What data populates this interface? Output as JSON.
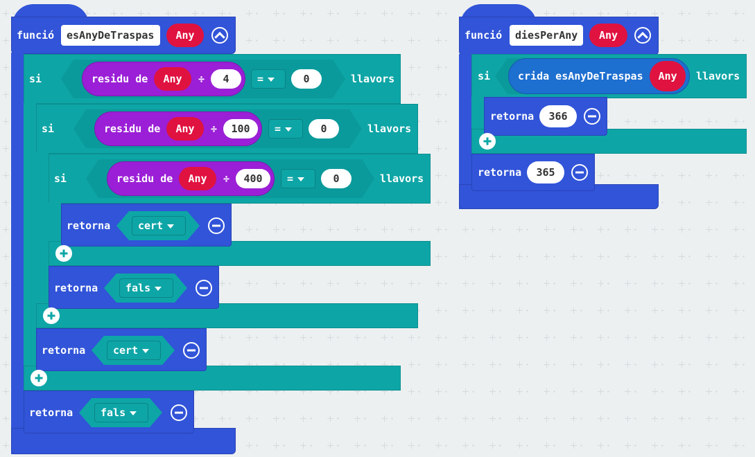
{
  "func1": {
    "keyword": "funció",
    "name": "esAnyDeTraspas",
    "param": "Any",
    "if1": {
      "kw_if": "si",
      "kw_then": "llavors",
      "residu": "residu de",
      "param": "Any",
      "div": "÷",
      "divisor": "4",
      "op": "=",
      "value": "0"
    },
    "if2": {
      "kw_if": "si",
      "kw_then": "llavors",
      "residu": "residu de",
      "param": "Any",
      "div": "÷",
      "divisor": "100",
      "op": "=",
      "value": "0"
    },
    "if3": {
      "kw_if": "si",
      "kw_then": "llavors",
      "residu": "residu de",
      "param": "Any",
      "div": "÷",
      "divisor": "400",
      "op": "=",
      "value": "0"
    },
    "ret_if3": {
      "kw": "retorna",
      "value": "cert"
    },
    "ret_if2": {
      "kw": "retorna",
      "value": "fals"
    },
    "ret_if1": {
      "kw": "retorna",
      "value": "cert"
    },
    "ret_end": {
      "kw": "retorna",
      "value": "fals"
    }
  },
  "func2": {
    "keyword": "funció",
    "name": "diesPerAny",
    "param": "Any",
    "if1": {
      "kw_if": "si",
      "kw_then": "llavors",
      "call": "crida esAnyDeTraspas",
      "param": "Any"
    },
    "ret_if": {
      "kw": "retorna",
      "value": "366"
    },
    "ret_end": {
      "kw": "retorna",
      "value": "365"
    }
  }
}
